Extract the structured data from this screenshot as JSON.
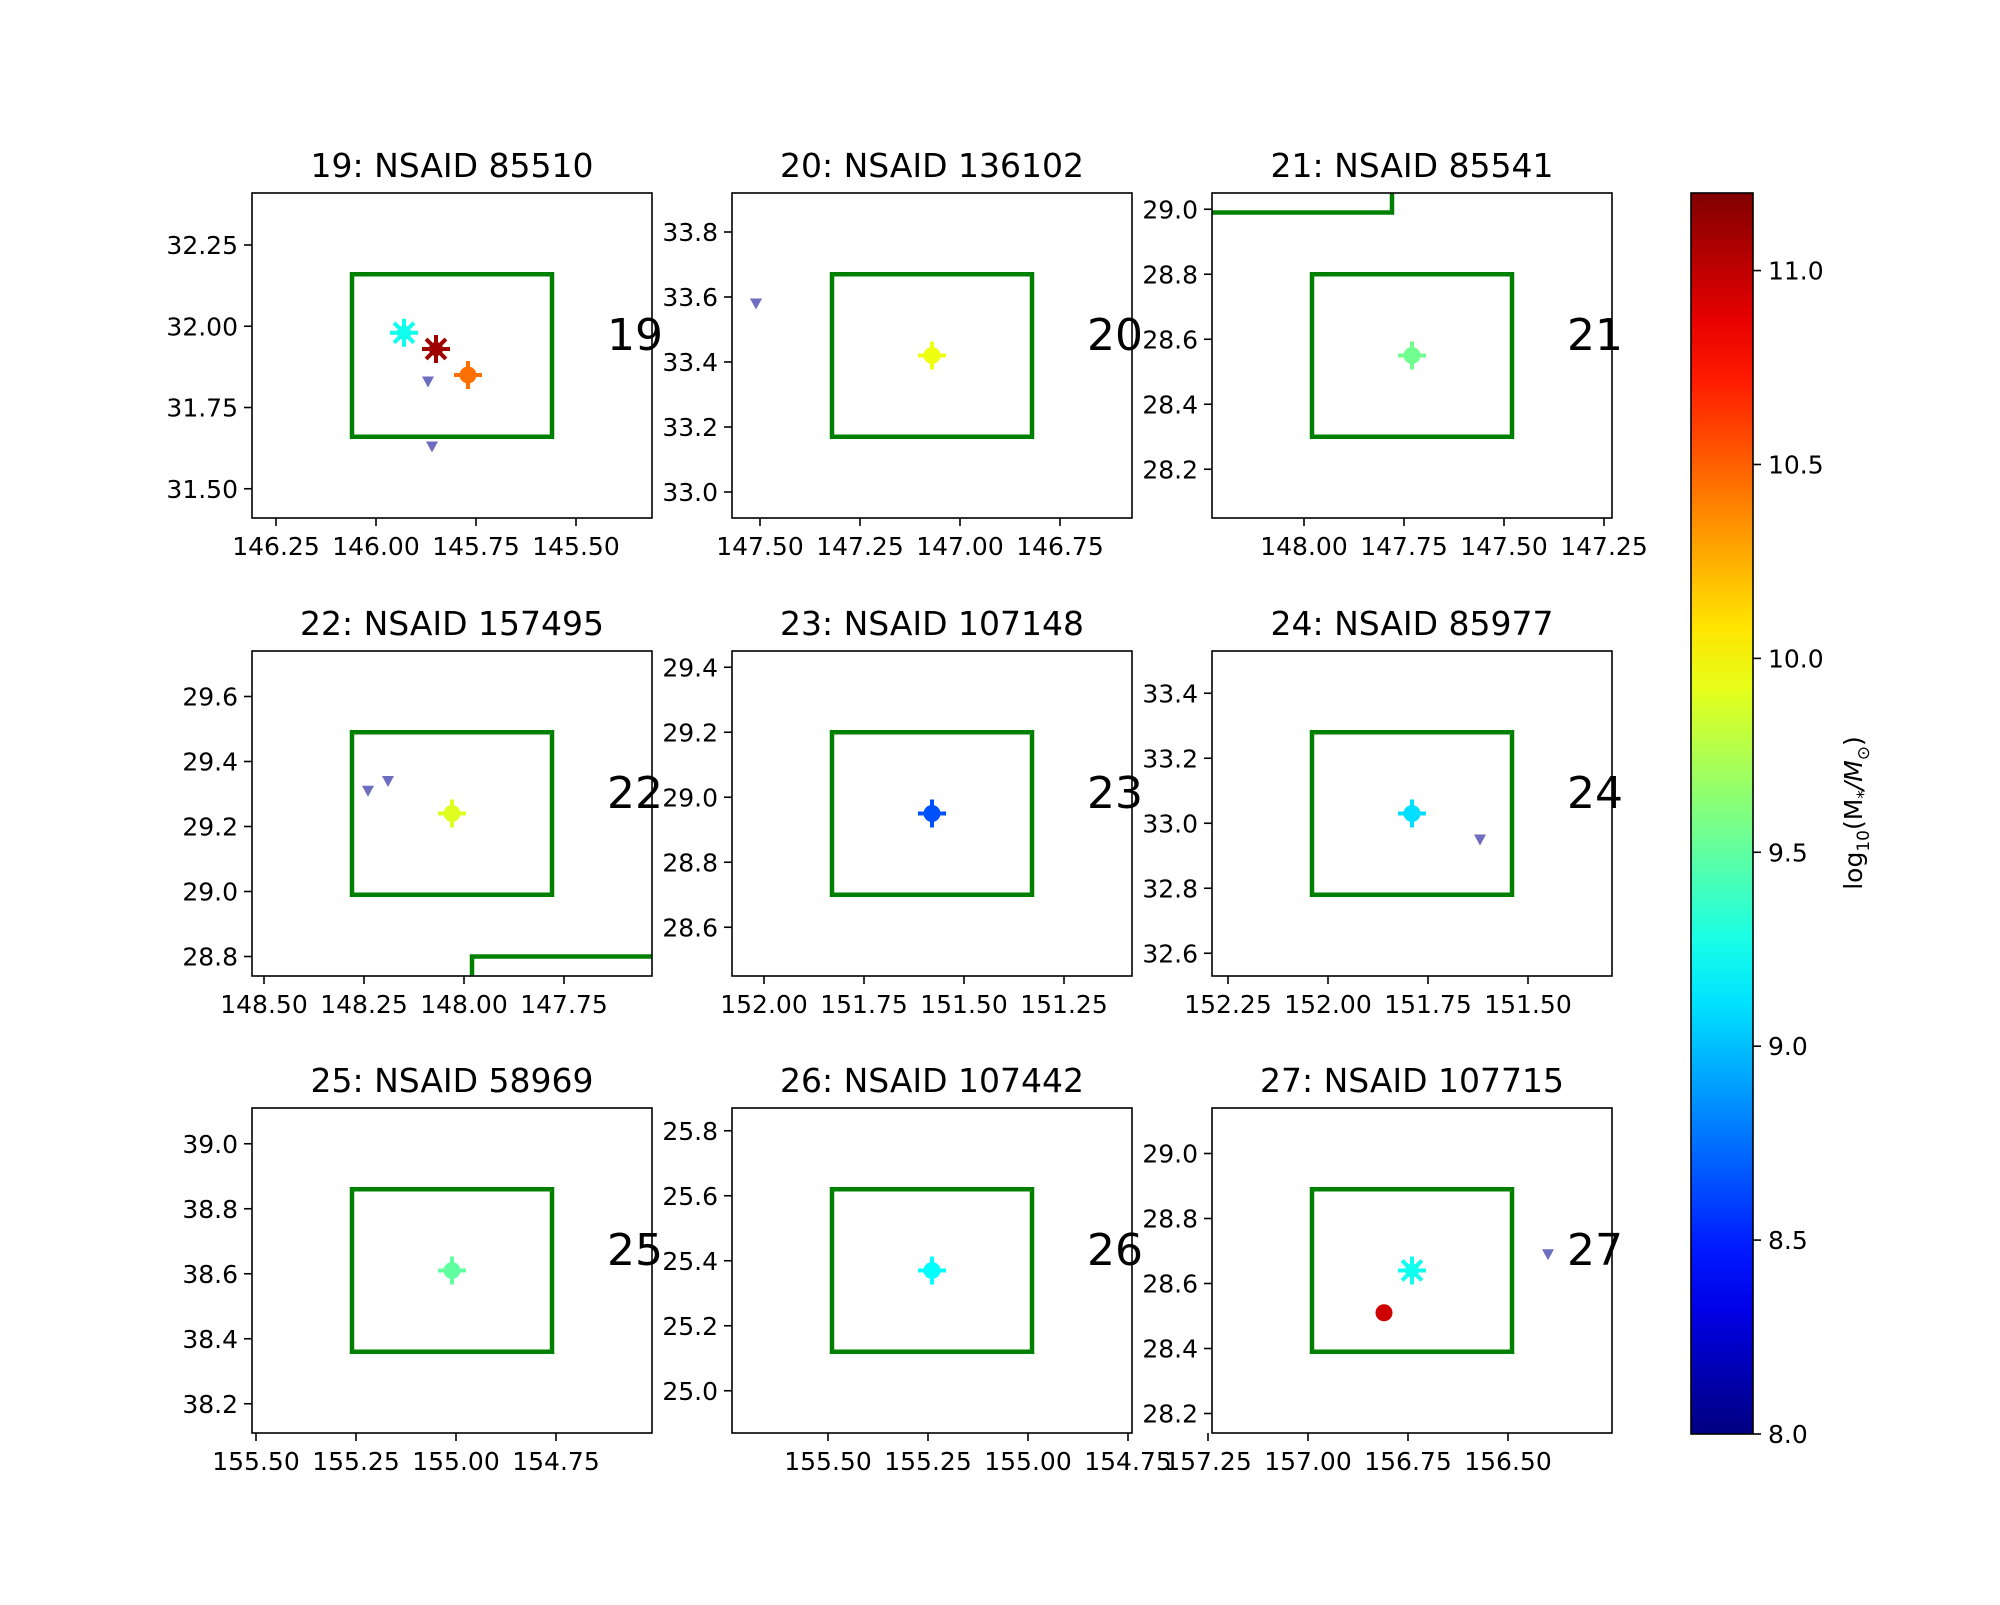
{
  "colors": {
    "frame": "#000000",
    "box": "#008000",
    "upper_limit": "#4a4ab0"
  },
  "colorbar": {
    "label": "log$_{10}$($M_*/M_\\odot$)",
    "label_base": "log",
    "label_sub": "10",
    "label_rest": "(M",
    "label_star": "*",
    "label_slash": "/M",
    "label_sun": "⊙",
    "label_close": ")",
    "min": 8.0,
    "max": 11.2,
    "colormap": "jet",
    "ticks": [
      "8.0",
      "8.5",
      "9.0",
      "9.5",
      "10.0",
      "10.5",
      "11.0"
    ]
  },
  "chart_data": [
    {
      "type": "scatter",
      "title": "19: NSAID 85510",
      "label": "19",
      "xlim": [
        146.31,
        145.31
      ],
      "ylim": [
        31.41,
        32.41
      ],
      "xticks": [
        "146.25",
        "146.00",
        "145.75",
        "145.50"
      ],
      "yticks": [
        "31.50",
        "31.75",
        "32.00",
        "32.25"
      ],
      "box": {
        "x": [
          146.06,
          145.56
        ],
        "y": [
          31.66,
          32.16
        ]
      },
      "polylines": [],
      "points": [
        {
          "x": 145.93,
          "y": 31.98,
          "logm": 9.25,
          "marker": "star"
        },
        {
          "x": 145.85,
          "y": 31.93,
          "logm": 11.1,
          "marker": "star"
        },
        {
          "x": 145.77,
          "y": 31.85,
          "logm": 10.45,
          "marker": "cross"
        },
        {
          "x": 145.87,
          "y": 31.83,
          "marker": "limit"
        },
        {
          "x": 145.86,
          "y": 31.63,
          "marker": "limit"
        }
      ]
    },
    {
      "type": "scatter",
      "title": "20: NSAID 136102",
      "label": "20",
      "xlim": [
        147.57,
        146.57
      ],
      "ylim": [
        32.92,
        33.92
      ],
      "xticks": [
        "147.50",
        "147.25",
        "147.00",
        "146.75"
      ],
      "yticks": [
        "33.0",
        "33.2",
        "33.4",
        "33.6",
        "33.8"
      ],
      "box": {
        "x": [
          147.32,
          146.82
        ],
        "y": [
          33.17,
          33.67
        ]
      },
      "polylines": [],
      "points": [
        {
          "x": 147.07,
          "y": 33.42,
          "logm": 9.95,
          "marker": "cross"
        },
        {
          "x": 147.51,
          "y": 33.58,
          "marker": "limit"
        }
      ]
    },
    {
      "type": "scatter",
      "title": "21: NSAID 85541",
      "label": "21",
      "xlim": [
        148.23,
        147.23
      ],
      "ylim": [
        28.05,
        29.05
      ],
      "xticks": [
        "148.00",
        "147.75",
        "147.50",
        "147.25"
      ],
      "yticks": [
        "28.2",
        "28.4",
        "28.6",
        "28.8",
        "29.0"
      ],
      "box": {
        "x": [
          147.98,
          147.48
        ],
        "y": [
          28.3,
          28.8
        ]
      },
      "polylines": [
        {
          "x": [
            148.23,
            147.78,
            147.78
          ],
          "y": [
            28.99,
            28.99,
            29.05
          ]
        }
      ],
      "points": [
        {
          "x": 147.73,
          "y": 28.55,
          "logm": 9.55,
          "marker": "cross"
        }
      ]
    },
    {
      "type": "scatter",
      "title": "22: NSAID 157495",
      "label": "22",
      "xlim": [
        148.53,
        147.53
      ],
      "ylim": [
        28.74,
        29.74
      ],
      "xticks": [
        "148.50",
        "148.25",
        "148.00",
        "147.75"
      ],
      "yticks": [
        "28.8",
        "29.0",
        "29.2",
        "29.4",
        "29.6"
      ],
      "box": {
        "x": [
          148.28,
          147.78
        ],
        "y": [
          28.99,
          29.49
        ]
      },
      "polylines": [
        {
          "x": [
            147.98,
            147.98,
            147.53
          ],
          "y": [
            28.74,
            28.8,
            28.8
          ]
        }
      ],
      "points": [
        {
          "x": 148.03,
          "y": 29.24,
          "logm": 9.9,
          "marker": "cross"
        },
        {
          "x": 148.24,
          "y": 29.31,
          "marker": "limit"
        },
        {
          "x": 148.19,
          "y": 29.34,
          "marker": "limit"
        }
      ]
    },
    {
      "type": "scatter",
      "title": "23: NSAID 107148",
      "label": "23",
      "xlim": [
        152.08,
        151.08
      ],
      "ylim": [
        28.45,
        29.45
      ],
      "xticks": [
        "152.00",
        "151.75",
        "151.50",
        "151.25"
      ],
      "yticks": [
        "28.6",
        "28.8",
        "29.0",
        "29.2",
        "29.4"
      ],
      "box": {
        "x": [
          151.83,
          151.33
        ],
        "y": [
          28.7,
          29.2
        ]
      },
      "polylines": [],
      "points": [
        {
          "x": 151.58,
          "y": 28.95,
          "logm": 8.65,
          "marker": "cross"
        }
      ]
    },
    {
      "type": "scatter",
      "title": "24: NSAID 85977",
      "label": "24",
      "xlim": [
        152.29,
        151.29
      ],
      "ylim": [
        32.53,
        33.53
      ],
      "xticks": [
        "152.25",
        "152.00",
        "151.75",
        "151.50"
      ],
      "yticks": [
        "32.6",
        "32.8",
        "33.0",
        "33.2",
        "33.4"
      ],
      "box": {
        "x": [
          152.04,
          151.54
        ],
        "y": [
          32.78,
          33.28
        ]
      },
      "polylines": [],
      "points": [
        {
          "x": 151.79,
          "y": 33.03,
          "logm": 9.1,
          "marker": "cross"
        },
        {
          "x": 151.62,
          "y": 32.95,
          "marker": "limit"
        }
      ]
    },
    {
      "type": "scatter",
      "title": "25: NSAID 58969",
      "label": "25",
      "xlim": [
        155.51,
        154.51
      ],
      "ylim": [
        38.11,
        39.11
      ],
      "xticks": [
        "155.50",
        "155.25",
        "155.00",
        "154.75"
      ],
      "yticks": [
        "38.2",
        "38.4",
        "38.6",
        "38.8",
        "39.0"
      ],
      "box": {
        "x": [
          155.26,
          154.76
        ],
        "y": [
          38.36,
          38.86
        ]
      },
      "polylines": [],
      "points": [
        {
          "x": 155.01,
          "y": 38.61,
          "logm": 9.5,
          "marker": "cross"
        }
      ]
    },
    {
      "type": "scatter",
      "title": "26: NSAID 107442",
      "label": "26",
      "xlim": [
        155.74,
        154.74
      ],
      "ylim": [
        24.87,
        25.87
      ],
      "xticks": [
        "155.50",
        "155.25",
        "155.00",
        "154.75"
      ],
      "yticks": [
        "25.0",
        "25.2",
        "25.4",
        "25.6",
        "25.8"
      ],
      "box": {
        "x": [
          155.49,
          154.99
        ],
        "y": [
          25.12,
          25.62
        ]
      },
      "polylines": [],
      "points": [
        {
          "x": 155.24,
          "y": 25.37,
          "logm": 9.2,
          "marker": "cross"
        }
      ]
    },
    {
      "type": "scatter",
      "title": "27: NSAID 107715",
      "label": "27",
      "xlim": [
        157.24,
        156.24
      ],
      "ylim": [
        28.14,
        29.14
      ],
      "xticks": [
        "157.25",
        "157.00",
        "156.75",
        "156.50"
      ],
      "yticks": [
        "28.2",
        "28.4",
        "28.6",
        "28.8",
        "29.0"
      ],
      "box": {
        "x": [
          156.99,
          156.49
        ],
        "y": [
          28.39,
          28.89
        ]
      },
      "polylines": [],
      "points": [
        {
          "x": 156.74,
          "y": 28.64,
          "logm": 9.25,
          "marker": "star"
        },
        {
          "x": 156.81,
          "y": 28.51,
          "logm": 10.95,
          "marker": "circle"
        },
        {
          "x": 156.4,
          "y": 28.69,
          "marker": "limit"
        }
      ]
    }
  ]
}
